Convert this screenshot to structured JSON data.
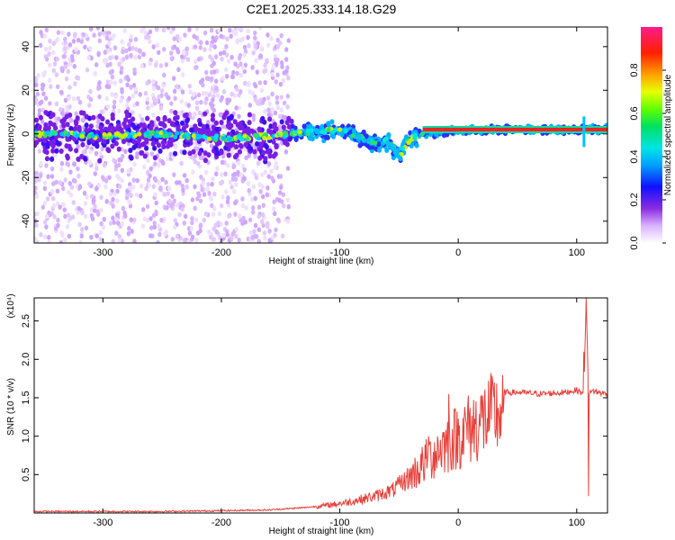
{
  "chart_data": [
    {
      "type": "heatmap",
      "title": "C2E1.2025.333.14.18.G29",
      "xlabel": "Height of straight line (km)",
      "ylabel": "Frequency (Hz)",
      "xlim": [
        -358,
        126
      ],
      "ylim": [
        -50,
        49
      ],
      "xticks": [
        "-300",
        "-200",
        "-100",
        "0",
        "100"
      ],
      "yticks": [
        "-40",
        "-20",
        "0",
        "20",
        "40"
      ],
      "xtick_values": [
        -300,
        -200,
        -100,
        0,
        100
      ],
      "ytick_values": [
        -40,
        -20,
        0,
        20,
        40
      ],
      "colorbar": {
        "label": "Normalized spectral amplitude",
        "ticks": [
          "0.0",
          "0.2",
          "0.4",
          "0.6",
          "0.8"
        ],
        "tick_values": [
          0,
          0.2,
          0.4,
          0.6,
          0.8
        ],
        "range": [
          0,
          1
        ],
        "colormap": "rainbow (white-violet-blue-cyan-green-yellow-red-magenta)"
      },
      "dominant_line": [
        {
          "x": -340,
          "y": 0
        },
        {
          "x": -300,
          "y": -1
        },
        {
          "x": -250,
          "y": 0
        },
        {
          "x": -200,
          "y": -2
        },
        {
          "x": -160,
          "y": -1
        },
        {
          "x": -140,
          "y": 0
        },
        {
          "x": -120,
          "y": 1
        },
        {
          "x": -100,
          "y": 2
        },
        {
          "x": -90,
          "y": 0
        },
        {
          "x": -80,
          "y": -2
        },
        {
          "x": -70,
          "y": -4
        },
        {
          "x": -60,
          "y": -3
        },
        {
          "x": -50,
          "y": -10
        },
        {
          "x": -45,
          "y": -6
        },
        {
          "x": -40,
          "y": -2
        },
        {
          "x": -30,
          "y": 0
        },
        {
          "x": -10,
          "y": 1
        },
        {
          "x": 10,
          "y": 2
        },
        {
          "x": 60,
          "y": 2
        },
        {
          "x": 106,
          "y": 2
        },
        {
          "x": 126,
          "y": 2
        }
      ],
      "grid": false
    },
    {
      "type": "line",
      "xlabel": "Height of straight line (km)",
      "ylabel": "SNR (10 * v/v)",
      "y_multiplier": "(x10⁴)",
      "xlim": [
        -358,
        126
      ],
      "ylim": [
        0,
        2.8
      ],
      "xticks": [
        "-300",
        "-200",
        "-100",
        "0",
        "100"
      ],
      "yticks": [
        "0.5",
        "1.0",
        "1.5",
        "2.0",
        "2.5"
      ],
      "xtick_values": [
        -300,
        -200,
        -100,
        0,
        100
      ],
      "ytick_values": [
        0.5,
        1.0,
        1.5,
        2.0,
        2.5
      ],
      "series": [
        {
          "color": "#e8403a",
          "x": [
            -358,
            -300,
            -250,
            -200,
            -160,
            -130,
            -110,
            -90,
            -70,
            -55,
            -45,
            -35,
            -25,
            -15,
            -5,
            5,
            15,
            25,
            35,
            38,
            39,
            50,
            70,
            90,
            100,
            106,
            108,
            110,
            112,
            115,
            126
          ],
          "y": [
            0.02,
            0.02,
            0.02,
            0.03,
            0.04,
            0.07,
            0.1,
            0.15,
            0.22,
            0.3,
            0.42,
            0.55,
            0.7,
            0.85,
            0.95,
            1.05,
            1.15,
            1.25,
            1.3,
            1.3,
            1.57,
            1.57,
            1.55,
            1.57,
            1.6,
            1.55,
            2.8,
            1.5,
            1.6,
            1.58,
            1.55
          ]
        }
      ],
      "spikes": [
        {
          "x": -25,
          "y": 1.0
        },
        {
          "x": -8,
          "y": 1.55
        },
        {
          "x": 8,
          "y": 1.4
        },
        {
          "x": 106,
          "y": 2.1
        },
        {
          "x": 108,
          "y": 2.8
        },
        {
          "x": 110,
          "y": 0.22
        }
      ],
      "grid": false
    }
  ]
}
